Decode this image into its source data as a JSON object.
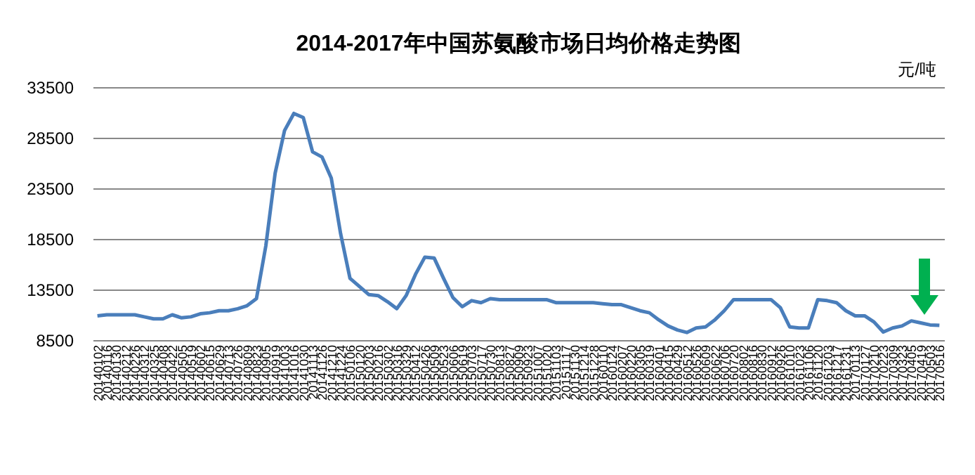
{
  "chart_data": {
    "type": "line",
    "title": "2014-2017年中国苏氨酸市场日均价格走势图",
    "ylabel": "元/吨",
    "categories": [
      "20140102",
      "20140116",
      "20140130",
      "20140212",
      "20140226",
      "20140312",
      "20140325",
      "20140408",
      "20140422",
      "20140505",
      "20140519",
      "20140602",
      "20140615",
      "20140629",
      "20140713",
      "20140726",
      "20140809",
      "20140823",
      "20140905",
      "20140919",
      "20141003",
      "20141016",
      "20141030",
      "20141113",
      "20141126",
      "20141210",
      "20141224",
      "20150106",
      "20150120",
      "20150203",
      "20150216",
      "20150302",
      "20150316",
      "20150329",
      "20150412",
      "20150426",
      "20150509",
      "20150523",
      "20150606",
      "20150619",
      "20150703",
      "20150717",
      "20150730",
      "20150813",
      "20150827",
      "20150909",
      "20150923",
      "20151007",
      "20151020",
      "20151103",
      "20151117",
      "20151130",
      "20151214",
      "20151228",
      "20160110",
      "20160124",
      "20160207",
      "20160220",
      "20160305",
      "20160319",
      "20160401",
      "20160415",
      "20160429",
      "20160512",
      "20160526",
      "20160609",
      "20160622",
      "20160706",
      "20160720",
      "20160802",
      "20160816",
      "20160830",
      "20160912",
      "20160926",
      "20161010",
      "20161023",
      "20161106",
      "20161120",
      "20161203",
      "20161217",
      "20161231",
      "20170113",
      "20170127",
      "20170210",
      "20170223",
      "20170309",
      "20170323",
      "20170405",
      "20170419",
      "20170503",
      "20170516"
    ],
    "line_style": "solid",
    "series": [
      {
        "color": "#4a7ebb",
        "values": [
          10900,
          11000,
          11000,
          11000,
          11000,
          10800,
          10600,
          10600,
          11000,
          10700,
          10800,
          11100,
          11200,
          11400,
          11400,
          11600,
          11900,
          12600,
          17800,
          25000,
          29200,
          30900,
          30500,
          27100,
          26600,
          24500,
          19000,
          14600,
          13800,
          13000,
          12900,
          12300,
          11600,
          12900,
          15000,
          16700,
          16600,
          14600,
          12700,
          11800,
          12400,
          12200,
          12600,
          12500,
          12500,
          12500,
          12500,
          12500,
          12500,
          12200,
          12200,
          12200,
          12200,
          12200,
          12100,
          12000,
          12000,
          11700,
          11400,
          11200,
          10500,
          9900,
          9500,
          9250,
          9700,
          9800,
          10500,
          11400,
          12500,
          12500,
          12500,
          12500,
          12500,
          11700,
          9800,
          9700,
          9700,
          12500,
          12400,
          12200,
          11400,
          10900,
          10900,
          10300,
          9300,
          9700,
          9900,
          10400,
          10200,
          10000,
          9950
        ]
      }
    ],
    "ylim": [
      8500,
      33500
    ],
    "yticks": [
      8500,
      13500,
      18500,
      23500,
      28500,
      33500
    ],
    "grid": "y"
  }
}
